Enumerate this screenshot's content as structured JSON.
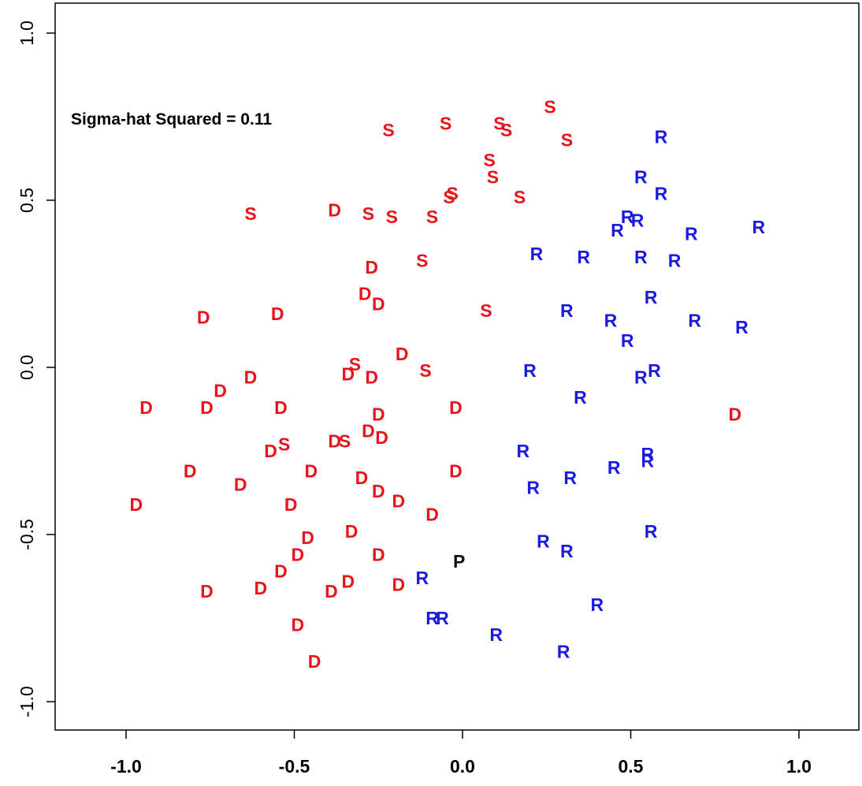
{
  "chart_data": {
    "type": "scatter",
    "title": "",
    "xlabel": "",
    "ylabel": "",
    "xlim": [
      -1.2,
      1.2
    ],
    "ylim": [
      -1.1,
      1.1
    ],
    "x_ticks": [
      "-1.0",
      "-0.5",
      "0.0",
      "0.5",
      "1.0"
    ],
    "x_tick_values": [
      -1.0,
      -0.5,
      0.0,
      0.5,
      1.0
    ],
    "y_ticks": [
      "-1.0",
      "-0.5",
      "0.0",
      "0.5",
      "1.0"
    ],
    "y_tick_values": [
      -1.0,
      -0.5,
      0.0,
      0.5,
      1.0
    ],
    "grid": false,
    "annotation": "Sigma-hat Squared = 0.11",
    "colors": {
      "D": "#e8141c",
      "S": "#e8141c",
      "R": "#1a1ae0",
      "P": "#111111"
    },
    "points": [
      {
        "label": "S",
        "x": -0.22,
        "y": 0.71
      },
      {
        "label": "S",
        "x": -0.05,
        "y": 0.73
      },
      {
        "label": "S",
        "x": 0.11,
        "y": 0.73
      },
      {
        "label": "S",
        "x": 0.13,
        "y": 0.71
      },
      {
        "label": "S",
        "x": 0.26,
        "y": 0.78
      },
      {
        "label": "S",
        "x": 0.31,
        "y": 0.68
      },
      {
        "label": "S",
        "x": 0.08,
        "y": 0.62
      },
      {
        "label": "S",
        "x": 0.09,
        "y": 0.57
      },
      {
        "label": "S",
        "x": -0.04,
        "y": 0.51
      },
      {
        "label": "S",
        "x": -0.03,
        "y": 0.52
      },
      {
        "label": "S",
        "x": 0.17,
        "y": 0.51
      },
      {
        "label": "S",
        "x": -0.63,
        "y": 0.46
      },
      {
        "label": "S",
        "x": -0.28,
        "y": 0.46
      },
      {
        "label": "S",
        "x": -0.21,
        "y": 0.45
      },
      {
        "label": "S",
        "x": -0.09,
        "y": 0.45
      },
      {
        "label": "S",
        "x": -0.12,
        "y": 0.32
      },
      {
        "label": "S",
        "x": 0.07,
        "y": 0.17
      },
      {
        "label": "S",
        "x": -0.32,
        "y": 0.01
      },
      {
        "label": "S",
        "x": -0.11,
        "y": -0.01
      },
      {
        "label": "S",
        "x": -0.53,
        "y": -0.23
      },
      {
        "label": "S",
        "x": -0.35,
        "y": -0.22
      },
      {
        "label": "D",
        "x": -0.38,
        "y": 0.47
      },
      {
        "label": "D",
        "x": -0.27,
        "y": 0.3
      },
      {
        "label": "D",
        "x": -0.29,
        "y": 0.22
      },
      {
        "label": "D",
        "x": -0.25,
        "y": 0.19
      },
      {
        "label": "D",
        "x": -0.77,
        "y": 0.15
      },
      {
        "label": "D",
        "x": -0.55,
        "y": 0.16
      },
      {
        "label": "D",
        "x": -0.18,
        "y": 0.04
      },
      {
        "label": "D",
        "x": -0.34,
        "y": -0.02
      },
      {
        "label": "D",
        "x": -0.27,
        "y": -0.03
      },
      {
        "label": "D",
        "x": -0.63,
        "y": -0.03
      },
      {
        "label": "D",
        "x": -0.72,
        "y": -0.07
      },
      {
        "label": "D",
        "x": -0.94,
        "y": -0.12
      },
      {
        "label": "D",
        "x": -0.76,
        "y": -0.12
      },
      {
        "label": "D",
        "x": -0.54,
        "y": -0.12
      },
      {
        "label": "D",
        "x": -0.25,
        "y": -0.14
      },
      {
        "label": "D",
        "x": -0.02,
        "y": -0.12
      },
      {
        "label": "D",
        "x": -0.57,
        "y": -0.25
      },
      {
        "label": "D",
        "x": -0.38,
        "y": -0.22
      },
      {
        "label": "D",
        "x": -0.28,
        "y": -0.19
      },
      {
        "label": "D",
        "x": -0.24,
        "y": -0.21
      },
      {
        "label": "D",
        "x": -0.81,
        "y": -0.31
      },
      {
        "label": "D",
        "x": -0.45,
        "y": -0.31
      },
      {
        "label": "D",
        "x": -0.3,
        "y": -0.33
      },
      {
        "label": "D",
        "x": -0.02,
        "y": -0.31
      },
      {
        "label": "D",
        "x": -0.66,
        "y": -0.35
      },
      {
        "label": "D",
        "x": -0.25,
        "y": -0.37
      },
      {
        "label": "D",
        "x": -0.97,
        "y": -0.41
      },
      {
        "label": "D",
        "x": -0.51,
        "y": -0.41
      },
      {
        "label": "D",
        "x": -0.19,
        "y": -0.4
      },
      {
        "label": "D",
        "x": -0.09,
        "y": -0.44
      },
      {
        "label": "D",
        "x": -0.33,
        "y": -0.49
      },
      {
        "label": "D",
        "x": -0.46,
        "y": -0.51
      },
      {
        "label": "D",
        "x": -0.49,
        "y": -0.56
      },
      {
        "label": "D",
        "x": -0.25,
        "y": -0.56
      },
      {
        "label": "D",
        "x": -0.54,
        "y": -0.61
      },
      {
        "label": "D",
        "x": -0.6,
        "y": -0.66
      },
      {
        "label": "D",
        "x": -0.76,
        "y": -0.67
      },
      {
        "label": "D",
        "x": -0.39,
        "y": -0.67
      },
      {
        "label": "D",
        "x": -0.34,
        "y": -0.64
      },
      {
        "label": "D",
        "x": -0.19,
        "y": -0.65
      },
      {
        "label": "D",
        "x": -0.49,
        "y": -0.77
      },
      {
        "label": "D",
        "x": -0.44,
        "y": -0.88
      },
      {
        "label": "D",
        "x": 0.81,
        "y": -0.14
      },
      {
        "label": "R",
        "x": 0.59,
        "y": 0.69
      },
      {
        "label": "R",
        "x": 0.53,
        "y": 0.57
      },
      {
        "label": "R",
        "x": 0.59,
        "y": 0.52
      },
      {
        "label": "R",
        "x": 0.49,
        "y": 0.45
      },
      {
        "label": "R",
        "x": 0.52,
        "y": 0.44
      },
      {
        "label": "R",
        "x": 0.46,
        "y": 0.41
      },
      {
        "label": "R",
        "x": 0.68,
        "y": 0.4
      },
      {
        "label": "R",
        "x": 0.88,
        "y": 0.42
      },
      {
        "label": "R",
        "x": 0.22,
        "y": 0.34
      },
      {
        "label": "R",
        "x": 0.36,
        "y": 0.33
      },
      {
        "label": "R",
        "x": 0.53,
        "y": 0.33
      },
      {
        "label": "R",
        "x": 0.63,
        "y": 0.32
      },
      {
        "label": "R",
        "x": 0.56,
        "y": 0.21
      },
      {
        "label": "R",
        "x": 0.31,
        "y": 0.17
      },
      {
        "label": "R",
        "x": 0.44,
        "y": 0.14
      },
      {
        "label": "R",
        "x": 0.69,
        "y": 0.14
      },
      {
        "label": "R",
        "x": 0.83,
        "y": 0.12
      },
      {
        "label": "R",
        "x": 0.49,
        "y": 0.08
      },
      {
        "label": "R",
        "x": 0.2,
        "y": -0.01
      },
      {
        "label": "R",
        "x": 0.57,
        "y": -0.01
      },
      {
        "label": "R",
        "x": 0.53,
        "y": -0.03
      },
      {
        "label": "R",
        "x": 0.35,
        "y": -0.09
      },
      {
        "label": "R",
        "x": 0.18,
        "y": -0.25
      },
      {
        "label": "R",
        "x": 0.55,
        "y": -0.26
      },
      {
        "label": "R",
        "x": 0.55,
        "y": -0.28
      },
      {
        "label": "R",
        "x": 0.45,
        "y": -0.3
      },
      {
        "label": "R",
        "x": 0.32,
        "y": -0.33
      },
      {
        "label": "R",
        "x": 0.21,
        "y": -0.36
      },
      {
        "label": "R",
        "x": 0.56,
        "y": -0.49
      },
      {
        "label": "R",
        "x": 0.24,
        "y": -0.52
      },
      {
        "label": "R",
        "x": 0.31,
        "y": -0.55
      },
      {
        "label": "R",
        "x": -0.12,
        "y": -0.63
      },
      {
        "label": "R",
        "x": 0.4,
        "y": -0.71
      },
      {
        "label": "R",
        "x": -0.09,
        "y": -0.75
      },
      {
        "label": "R",
        "x": -0.06,
        "y": -0.75
      },
      {
        "label": "R",
        "x": 0.1,
        "y": -0.8
      },
      {
        "label": "R",
        "x": 0.3,
        "y": -0.85
      },
      {
        "label": "P",
        "x": -0.01,
        "y": -0.58
      }
    ]
  }
}
